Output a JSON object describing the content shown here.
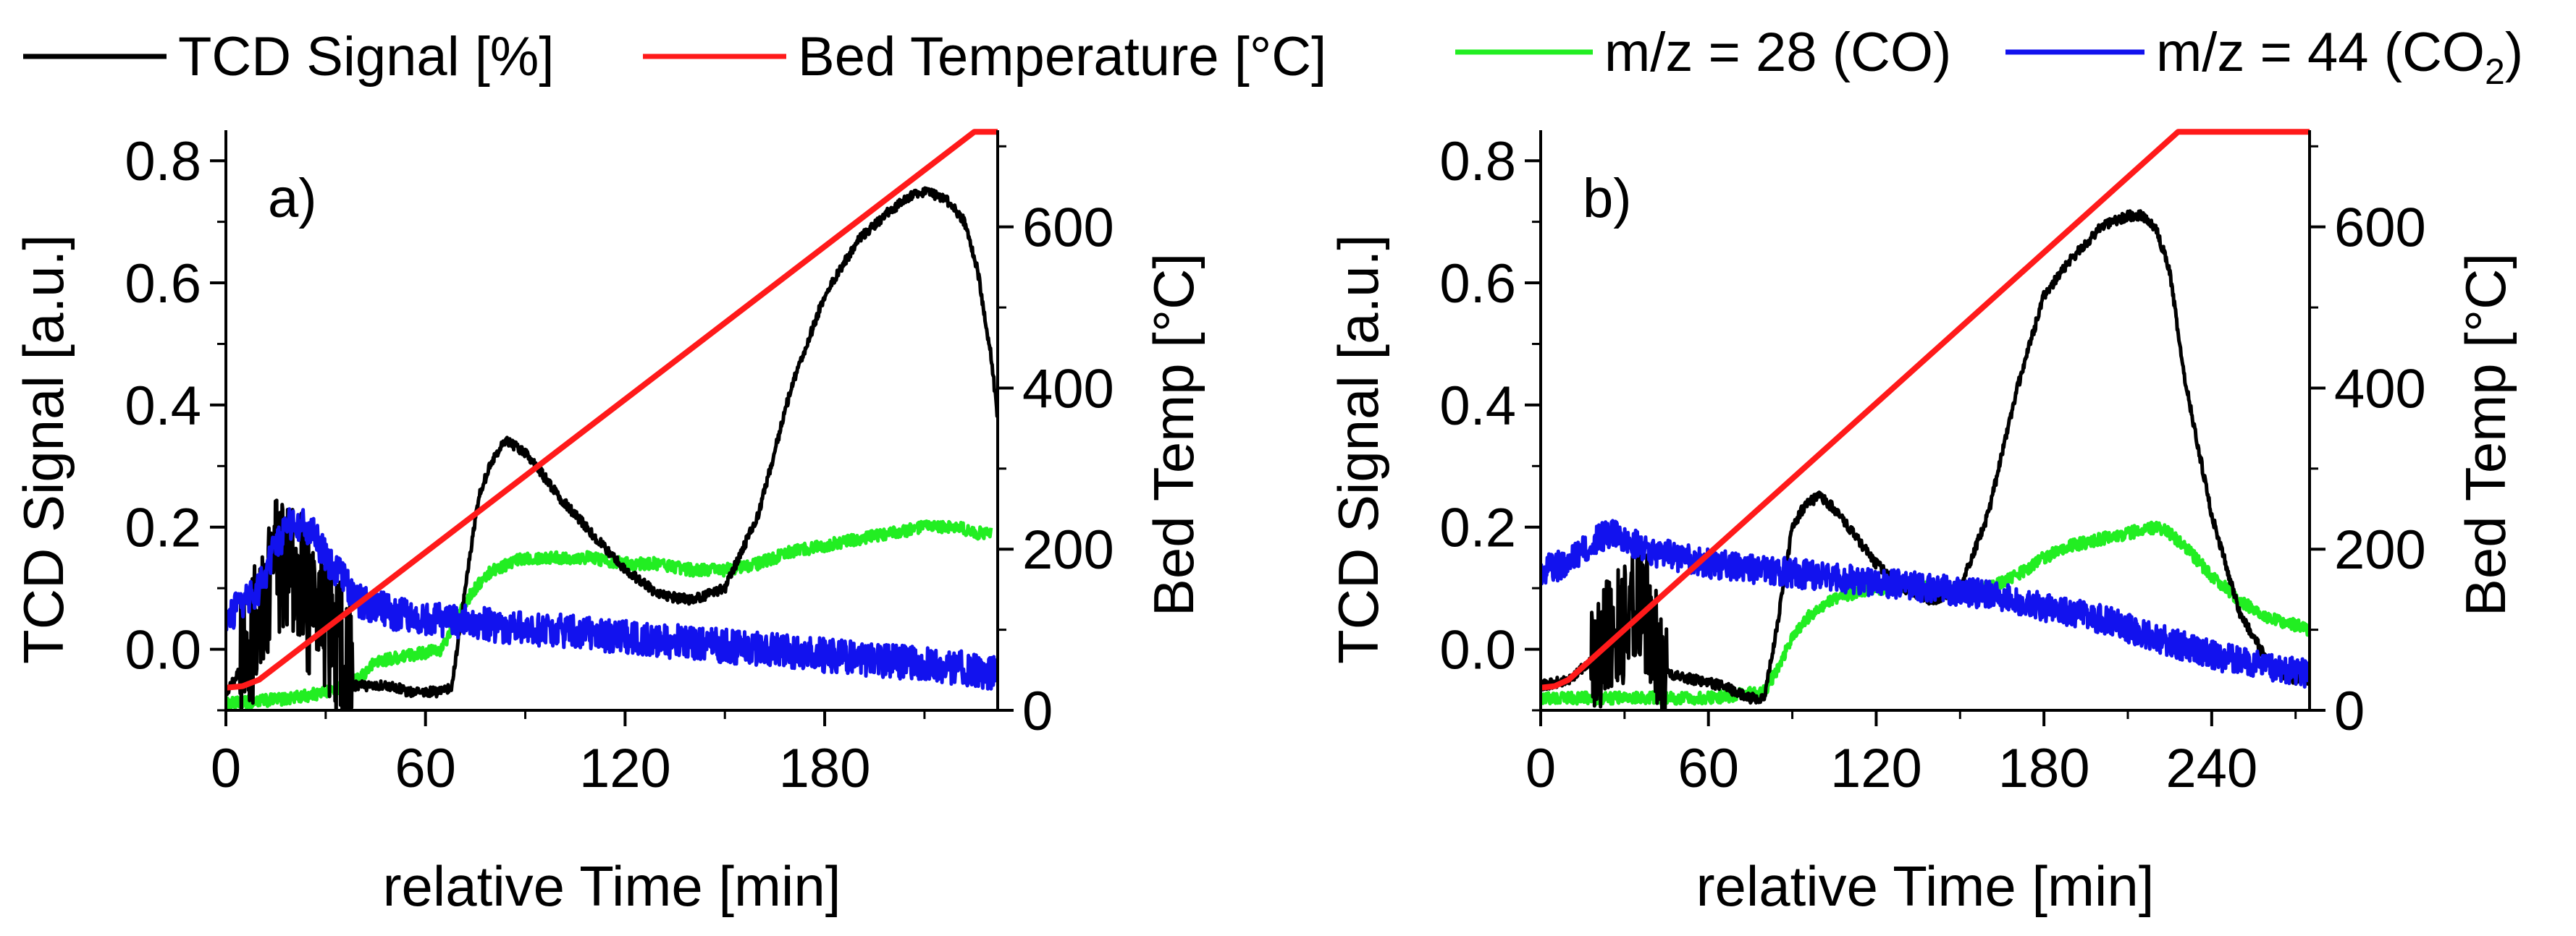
{
  "colors": {
    "tcd": "#000000",
    "bed": "#ff1a1a",
    "co": "#22ee22",
    "co2": "#1212ee"
  },
  "legend": {
    "items": [
      {
        "key": "tcd",
        "label": "TCD Signal [%]"
      },
      {
        "key": "bed",
        "label": "Bed Temperature [°C]"
      },
      {
        "key": "co",
        "label": "m/z = 28 (CO)"
      },
      {
        "key": "co2",
        "label_prefix": "m/z = 44 (CO",
        "label_sub": "2",
        "label_suffix": ")"
      }
    ]
  },
  "chart_data": [
    {
      "type": "line",
      "panel_label": "a)",
      "xlabel": "relative Time [min]",
      "ylabel_left": "TCD Signal [a.u.]",
      "ylabel_right": "Bed Temp [°C]",
      "xlim": [
        0,
        232
      ],
      "ylim_left": [
        -0.1,
        0.85
      ],
      "ylim_right": [
        0,
        720
      ],
      "xticks": [
        0,
        60,
        120,
        180
      ],
      "yticks_left": [
        0.0,
        0.2,
        0.4,
        0.6,
        0.8
      ],
      "yticks_left_labels": [
        "0.0",
        "0.2",
        "0.4",
        "0.6",
        "0.8"
      ],
      "yticks_right": [
        0,
        200,
        400,
        600
      ],
      "series": [
        {
          "name": "TCD Signal",
          "key": "tcd",
          "axis": "left",
          "noise": 0.008,
          "burst": {
            "from": 4,
            "to": 38,
            "amp": 0.12
          },
          "x": [
            0,
            5,
            10,
            15,
            20,
            25,
            30,
            35,
            38,
            45,
            50,
            55,
            60,
            65,
            68,
            72,
            76,
            80,
            84,
            88,
            92,
            96,
            100,
            110,
            120,
            130,
            140,
            150,
            160,
            170,
            180,
            190,
            200,
            205,
            210,
            215,
            218,
            222,
            226,
            230,
            232
          ],
          "y": [
            -0.07,
            -0.03,
            0.06,
            0.12,
            0.13,
            0.08,
            0.05,
            -0.02,
            -0.06,
            -0.06,
            -0.06,
            -0.07,
            -0.07,
            -0.07,
            -0.06,
            0.1,
            0.25,
            0.31,
            0.34,
            0.33,
            0.31,
            0.28,
            0.25,
            0.19,
            0.13,
            0.09,
            0.08,
            0.1,
            0.22,
            0.43,
            0.58,
            0.67,
            0.72,
            0.74,
            0.75,
            0.74,
            0.73,
            0.7,
            0.62,
            0.48,
            0.38
          ]
        },
        {
          "name": "Bed Temperature",
          "key": "bed",
          "axis": "right",
          "noise": 0,
          "x": [
            0,
            5,
            10,
            225,
            232
          ],
          "y": [
            28,
            30,
            38,
            718,
            718
          ]
        },
        {
          "name": "m/z = 28 (CO)",
          "key": "co",
          "axis": "left",
          "noise": 0.01,
          "x": [
            0,
            20,
            30,
            40,
            45,
            55,
            65,
            70,
            75,
            80,
            90,
            100,
            110,
            120,
            130,
            140,
            150,
            160,
            170,
            180,
            190,
            200,
            210,
            220,
            225,
            230
          ],
          "y": [
            -0.09,
            -0.08,
            -0.07,
            -0.05,
            -0.02,
            -0.01,
            0.0,
            0.06,
            0.1,
            0.13,
            0.15,
            0.15,
            0.15,
            0.14,
            0.14,
            0.13,
            0.13,
            0.14,
            0.16,
            0.17,
            0.18,
            0.19,
            0.2,
            0.2,
            0.19,
            0.19
          ]
        },
        {
          "name": "m/z = 44 (CO2)",
          "key": "co2",
          "axis": "left",
          "noise": 0.028,
          "x": [
            0,
            10,
            15,
            20,
            25,
            30,
            40,
            50,
            60,
            80,
            100,
            120,
            140,
            160,
            180,
            200,
            220,
            232
          ],
          "y": [
            0.05,
            0.1,
            0.17,
            0.21,
            0.2,
            0.15,
            0.08,
            0.06,
            0.05,
            0.04,
            0.03,
            0.02,
            0.01,
            0.0,
            -0.01,
            -0.02,
            -0.03,
            -0.04
          ]
        }
      ]
    },
    {
      "type": "line",
      "panel_label": "b)",
      "xlabel": "relative Time [min]",
      "ylabel_left": "TCD Signal [a.u.]",
      "ylabel_right": "Bed Temp [°C]",
      "xlim": [
        0,
        275
      ],
      "ylim_left": [
        -0.1,
        0.85
      ],
      "ylim_right": [
        0,
        720
      ],
      "xticks": [
        0,
        60,
        120,
        180,
        240
      ],
      "yticks_left": [
        0.0,
        0.2,
        0.4,
        0.6,
        0.8
      ],
      "yticks_left_labels": [
        "0.0",
        "0.2",
        "0.4",
        "0.6",
        "0.8"
      ],
      "yticks_right": [
        0,
        200,
        400,
        600
      ],
      "series": [
        {
          "name": "TCD Signal",
          "key": "tcd",
          "axis": "left",
          "noise": 0.008,
          "burst": {
            "from": 18,
            "to": 45,
            "amp": 0.1
          },
          "x": [
            0,
            10,
            18,
            24,
            30,
            36,
            40,
            45,
            55,
            65,
            75,
            80,
            85,
            90,
            95,
            100,
            105,
            110,
            120,
            130,
            140,
            150,
            160,
            170,
            180,
            190,
            200,
            205,
            210,
            215,
            220,
            225,
            230,
            240,
            250,
            260,
            265,
            270,
            275
          ],
          "y": [
            -0.06,
            -0.05,
            -0.02,
            0.02,
            0.04,
            0.08,
            0.02,
            -0.04,
            -0.05,
            -0.06,
            -0.08,
            -0.08,
            0.05,
            0.2,
            0.24,
            0.25,
            0.23,
            0.2,
            0.14,
            0.1,
            0.08,
            0.1,
            0.22,
            0.42,
            0.58,
            0.64,
            0.69,
            0.7,
            0.71,
            0.71,
            0.69,
            0.62,
            0.45,
            0.22,
            0.06,
            -0.02,
            -0.04,
            -0.05,
            -0.05
          ]
        },
        {
          "name": "Bed Temperature",
          "key": "bed",
          "axis": "right",
          "noise": 0,
          "x": [
            0,
            5,
            10,
            228,
            275
          ],
          "y": [
            28,
            30,
            38,
            718,
            718
          ]
        },
        {
          "name": "m/z = 28 (CO)",
          "key": "co",
          "axis": "left",
          "noise": 0.01,
          "x": [
            0,
            40,
            60,
            80,
            85,
            90,
            95,
            100,
            110,
            120,
            140,
            160,
            170,
            180,
            190,
            200,
            210,
            220,
            225,
            230,
            240,
            250,
            260,
            270,
            275
          ],
          "y": [
            -0.08,
            -0.08,
            -0.08,
            -0.07,
            -0.03,
            0.02,
            0.05,
            0.07,
            0.09,
            0.1,
            0.1,
            0.1,
            0.12,
            0.15,
            0.17,
            0.18,
            0.19,
            0.2,
            0.19,
            0.17,
            0.12,
            0.08,
            0.05,
            0.04,
            0.03
          ]
        },
        {
          "name": "m/z = 44 (CO2)",
          "key": "co2",
          "axis": "left",
          "noise": 0.024,
          "x": [
            0,
            10,
            20,
            25,
            30,
            40,
            50,
            60,
            80,
            100,
            120,
            140,
            160,
            180,
            200,
            220,
            240,
            260,
            275
          ],
          "y": [
            0.13,
            0.14,
            0.18,
            0.19,
            0.18,
            0.16,
            0.15,
            0.14,
            0.13,
            0.12,
            0.11,
            0.1,
            0.09,
            0.07,
            0.05,
            0.02,
            -0.01,
            -0.03,
            -0.04
          ]
        }
      ]
    }
  ]
}
